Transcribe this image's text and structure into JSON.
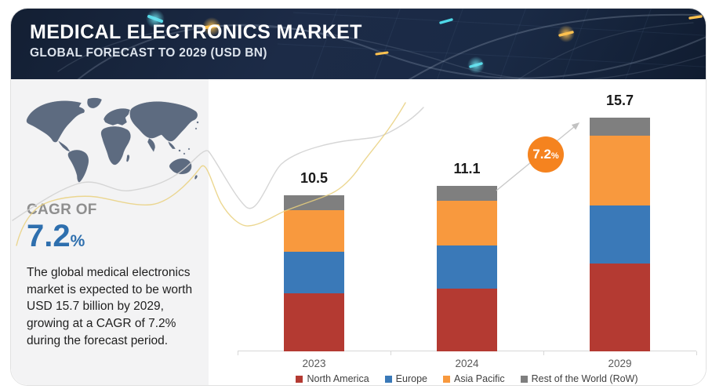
{
  "header": {
    "title": "MEDICAL ELECTRONICS MARKET",
    "subtitle": "GLOBAL FORECAST TO 2029 (USD BN)"
  },
  "sidebar": {
    "cagr_label": "CAGR OF",
    "cagr_value": "7.2",
    "cagr_unit": "%",
    "description": "The global medical electronics market is expected to be worth USD 15.7 billion by 2029, growing at a CAGR of 7.2% during the forecast period."
  },
  "badge": {
    "value": "7.2",
    "unit": "%",
    "color": "#f5831f"
  },
  "colors": {
    "header_bg": "#1b2a45",
    "accent_blue_text": "#2e6fae",
    "panel_bg": "#f3f3f4",
    "map_fill": "#5d6b80",
    "axis_gray": "#d8d8d8",
    "wave_gray": "#d2d2d2",
    "wave_yellow": "#e9d07e"
  },
  "chart_data": {
    "type": "bar",
    "stacked": true,
    "title": "MEDICAL ELECTRONICS MARKET",
    "subtitle": "GLOBAL FORECAST TO 2029 (USD BN)",
    "unit": "USD BN",
    "categories": [
      "2023",
      "2024",
      "2029"
    ],
    "totals": [
      10.5,
      11.1,
      15.7
    ],
    "series": [
      {
        "name": "North America",
        "color": "#b43a32",
        "values": [
          3.9,
          4.2,
          5.9
        ]
      },
      {
        "name": "Europe",
        "color": "#3a79b8",
        "values": [
          2.8,
          2.9,
          3.9
        ]
      },
      {
        "name": "Asia Pacific",
        "color": "#f8993e",
        "values": [
          2.8,
          3.0,
          4.7
        ]
      },
      {
        "name": "Rest of the World (RoW)",
        "color": "#7f7f7f",
        "values": [
          1.0,
          1.0,
          1.2
        ]
      }
    ],
    "annotation": "7.2% CAGR arrow between 2024 and 2029 bars",
    "legend_position": "bottom",
    "grid": false
  }
}
